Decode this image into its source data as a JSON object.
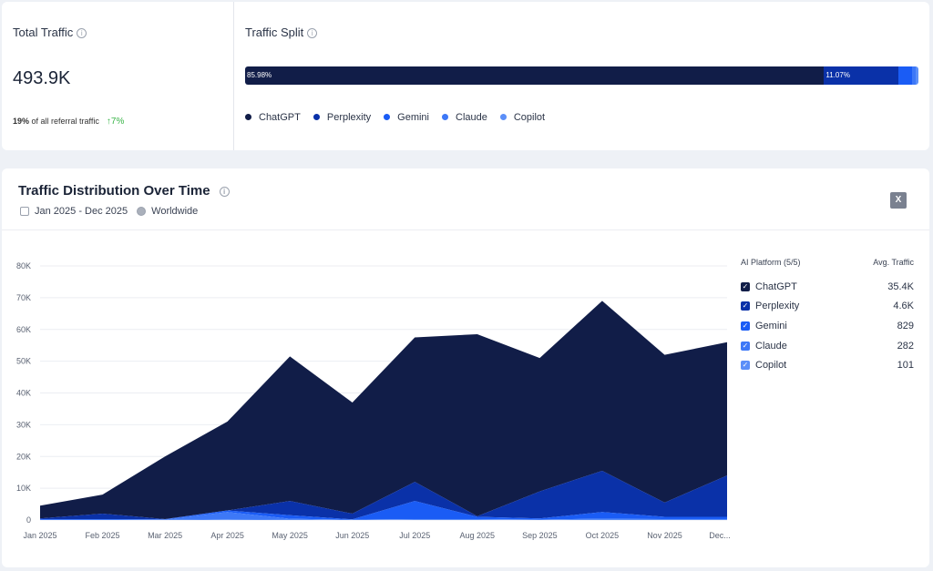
{
  "total": {
    "label": "Total Traffic",
    "value": "493.9K",
    "share": "19%",
    "share_text": "of all referral traffic",
    "change": "↑7%"
  },
  "split": {
    "label": "Traffic Split",
    "segments": [
      {
        "name": "ChatGPT",
        "pct": 85.98,
        "label": "85.98%",
        "color": "#111d48"
      },
      {
        "name": "Perplexity",
        "pct": 11.07,
        "label": "11.07%",
        "color": "#0a31a8"
      },
      {
        "name": "Gemini",
        "pct": 1.95,
        "label": "",
        "color": "#1a5cf5"
      },
      {
        "name": "Claude",
        "pct": 0.66,
        "label": "",
        "color": "#3d78f7"
      },
      {
        "name": "Copilot",
        "pct": 0.34,
        "label": "",
        "color": "#5b8ff8"
      }
    ]
  },
  "main": {
    "title": "Traffic Distribution Over Time",
    "date_range": "Jan 2025 - Dec 2025",
    "region": "Worldwide",
    "export_icon": "excel-icon"
  },
  "legend": {
    "header": "AI Platform (5/5)",
    "value_header": "Avg. Traffic",
    "items": [
      {
        "name": "ChatGPT",
        "avg": "35.4K",
        "color": "#111d48"
      },
      {
        "name": "Perplexity",
        "avg": "4.6K",
        "color": "#0a31a8"
      },
      {
        "name": "Gemini",
        "avg": "829",
        "color": "#1a5cf5"
      },
      {
        "name": "Claude",
        "avg": "282",
        "color": "#3d78f7"
      },
      {
        "name": "Copilot",
        "avg": "101",
        "color": "#5b8ff8"
      }
    ]
  },
  "chart_data": {
    "type": "area",
    "stacked": true,
    "grid": true,
    "ylim": [
      0,
      80000
    ],
    "y_ticks": [
      "0",
      "10K",
      "20K",
      "30K",
      "40K",
      "50K",
      "60K",
      "70K",
      "80K"
    ],
    "categories": [
      "Jan 2025",
      "Feb 2025",
      "Mar 2025",
      "Apr 2025",
      "May 2025",
      "Jun 2025",
      "Jul 2025",
      "Aug 2025",
      "Sep 2025",
      "Oct 2025",
      "Nov 2025",
      "Dec..."
    ],
    "series": [
      {
        "name": "Copilot",
        "values": [
          50,
          50,
          50,
          200,
          100,
          50,
          100,
          100,
          50,
          100,
          100,
          100
        ]
      },
      {
        "name": "Claude",
        "values": [
          100,
          100,
          50,
          2300,
          300,
          50,
          200,
          200,
          100,
          300,
          200,
          200
        ]
      },
      {
        "name": "Gemini",
        "values": [
          150,
          150,
          100,
          500,
          1100,
          100,
          5700,
          700,
          350,
          2100,
          700,
          700
        ]
      },
      {
        "name": "Perplexity",
        "values": [
          200,
          1700,
          100,
          0,
          4500,
          1800,
          6000,
          200,
          8500,
          13000,
          4500,
          13000
        ]
      },
      {
        "name": "ChatGPT",
        "values": [
          4000,
          6000,
          19700,
          28000,
          45500,
          35000,
          45500,
          57300,
          42000,
          53500,
          46500,
          42000
        ]
      }
    ]
  }
}
